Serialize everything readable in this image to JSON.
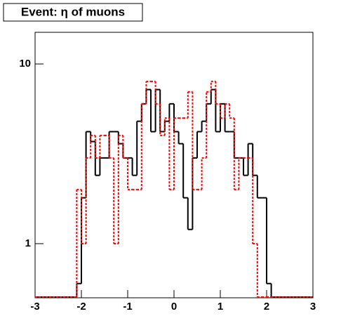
{
  "chart_data": {
    "type": "histogram",
    "title": "Event: η of muons",
    "bins": [
      -2.1,
      -2.0,
      -1.9,
      -1.8,
      -1.7,
      -1.6,
      -1.5,
      -1.4,
      -1.3,
      -1.2,
      -1.1,
      -1.0,
      -0.9,
      -0.8,
      -0.7,
      -0.6,
      -0.5,
      -0.4,
      -0.3,
      -0.2,
      -0.1,
      0.0,
      0.1,
      0.2,
      0.3,
      0.4,
      0.5,
      0.6,
      0.7,
      0.8,
      0.9,
      1.0,
      1.1,
      1.2,
      1.3,
      1.4,
      1.5,
      1.6,
      1.7,
      1.8,
      1.9,
      2.0,
      2.1
    ],
    "series": [
      {
        "color": "#000000",
        "line": "solid",
        "values": [
          0.6,
          1.8,
          4.2,
          3.7,
          2.4,
          3.0,
          3.0,
          4.2,
          4.2,
          3.6,
          3.0,
          3.0,
          2.4,
          4.8,
          6.0,
          7.2,
          4.2,
          7.2,
          4.2,
          4.8,
          6.0,
          4.2,
          3.6,
          1.8,
          1.2,
          3.0,
          4.2,
          4.8,
          6.0,
          7.2,
          4.2,
          6.0,
          4.2,
          4.2,
          3.0,
          3.0,
          2.4,
          3.6,
          2.4,
          1.8,
          1.8,
          0.6
        ]
      },
      {
        "color": "#ff0000",
        "line": "dotted",
        "values": [
          2,
          1,
          3,
          4,
          3,
          4,
          4,
          3,
          1,
          4,
          3,
          2,
          2,
          2,
          6,
          8,
          8,
          6,
          4,
          5,
          2,
          5,
          5,
          5,
          7,
          2,
          2,
          3,
          7,
          8,
          6,
          5,
          6,
          5,
          2,
          3,
          3,
          3,
          1,
          0,
          0,
          0
        ]
      }
    ],
    "xlim": [
      -3,
      3
    ],
    "xticks": [
      -3,
      -2,
      -1,
      0,
      1,
      2,
      3
    ],
    "ylim": [
      0.5,
      15
    ],
    "yticks": [
      1,
      10
    ],
    "ylog": true
  }
}
